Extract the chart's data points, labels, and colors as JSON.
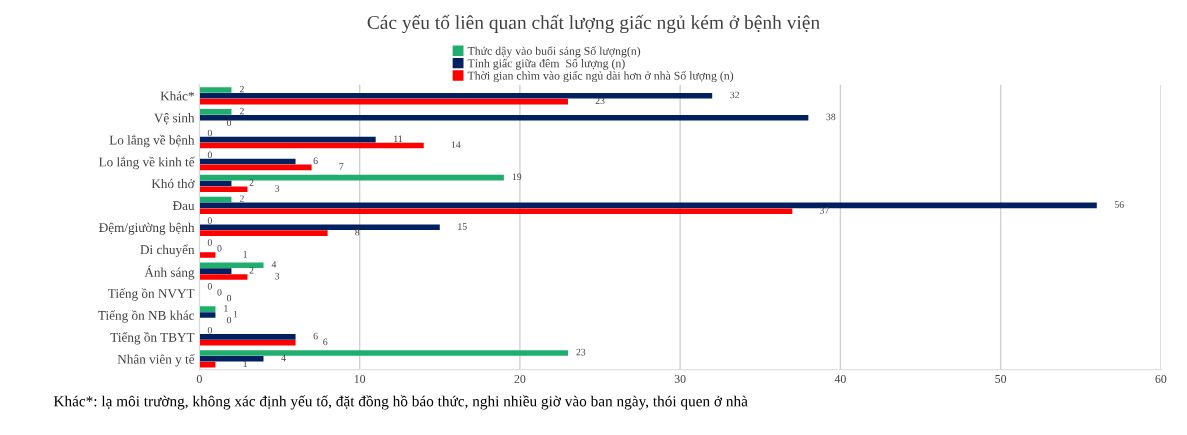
{
  "chart_data": {
    "type": "bar",
    "orientation": "horizontal",
    "title": "Các yếu tố liên quan chất lượng giấc ngủ kém ở bệnh viện",
    "categories": [
      "Khác*",
      "Vệ sinh",
      "Lo lắng về bệnh",
      "Lo lắng về kinh tế",
      "Khó thở",
      "Đau",
      "Đệm/giường bệnh",
      "Di chuyển",
      "Ánh sáng",
      "Tiếng ồn NVYT",
      "Tiếng ồn NB khác",
      "Tiếng ồn TBYT",
      "Nhân viên y tế"
    ],
    "series": [
      {
        "name": "Thức dậy vào buổi sáng Số lượng(n)",
        "color": "#1fae6e",
        "values": [
          2,
          2,
          0,
          0,
          19,
          2,
          0,
          0,
          4,
          0,
          1,
          0,
          23
        ]
      },
      {
        "name": "Tỉnh giấc giữa đêm  Số lượng (n)",
        "color": "#002060",
        "values": [
          32,
          38,
          11,
          6,
          2,
          56,
          15,
          0,
          2,
          0,
          1,
          6,
          4
        ]
      },
      {
        "name": "Thời gian chìm vào giấc ngủ dài hơn ở nhà Số lượng (n)",
        "color": "#ff0000",
        "values": [
          23,
          0,
          14,
          7,
          3,
          37,
          8,
          1,
          3,
          0,
          0,
          6,
          1
        ]
      }
    ],
    "xlim": [
      0,
      60
    ],
    "xticks": [
      0,
      10,
      20,
      30,
      40,
      50,
      60
    ],
    "grid": "x",
    "legend": "top",
    "data_labels": true,
    "annotations": [
      "Khác*: lạ môi trường, không xác định yếu tố, đặt đồng hồ báo thức, nghi nhiều giờ vào ban ngày, thói quen ở nhà"
    ]
  }
}
